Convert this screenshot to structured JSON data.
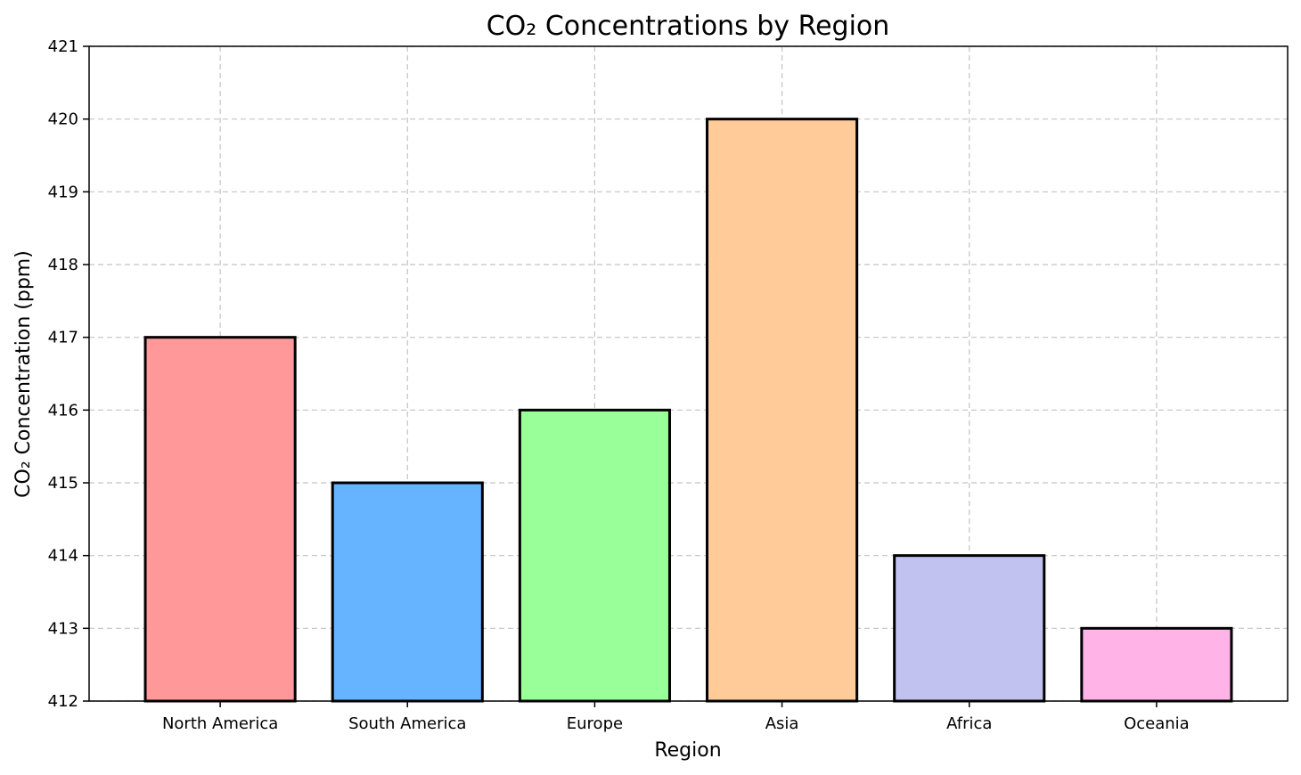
{
  "chart_data": {
    "type": "bar",
    "title": "CO₂ Concentrations by Region",
    "xlabel": "Region",
    "ylabel": "CO₂ Concentration (ppm)",
    "categories": [
      "North America",
      "South America",
      "Europe",
      "Asia",
      "Africa",
      "Oceania"
    ],
    "values": [
      417,
      415,
      416,
      420,
      414,
      413
    ],
    "colors": [
      "#ff9999",
      "#66b3ff",
      "#99ff99",
      "#ffcc99",
      "#c2c2f0",
      "#ffb3e6"
    ],
    "ylim": [
      412,
      421
    ],
    "yticks": [
      412,
      413,
      414,
      415,
      416,
      417,
      418,
      419,
      420,
      421
    ],
    "grid": true,
    "legend": "none"
  }
}
